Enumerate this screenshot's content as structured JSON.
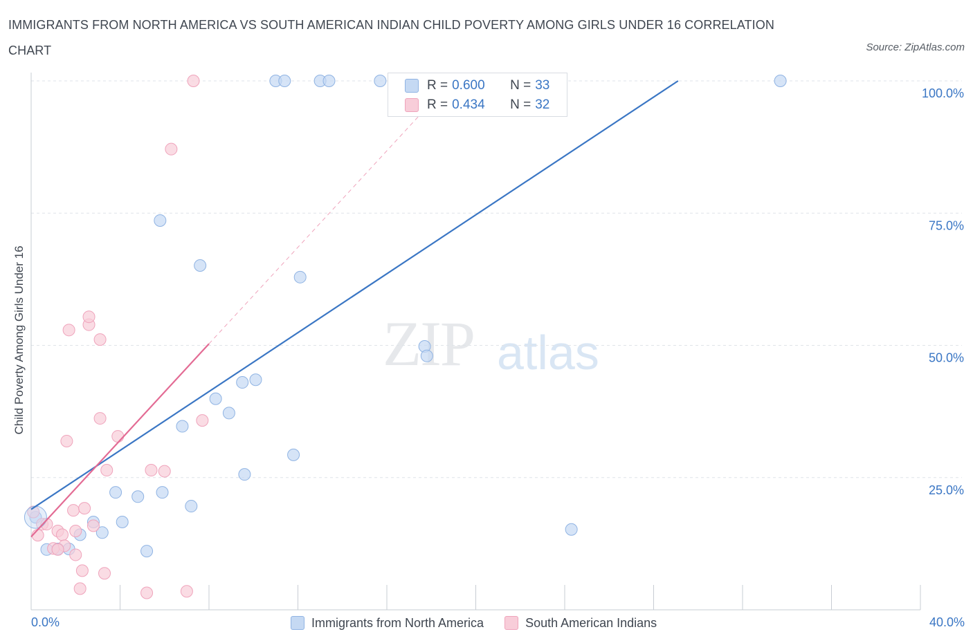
{
  "header": {
    "title": "IMMIGRANTS FROM NORTH AMERICA VS SOUTH AMERICAN INDIAN CHILD POVERTY AMONG GIRLS UNDER 16 CORRELATION CHART",
    "source": "Source: ZipAtlas.com"
  },
  "watermark": {
    "zip": "ZIP",
    "atlas": "atlas"
  },
  "stats": {
    "blue": {
      "r_label": "R = ",
      "r": "0.600",
      "n_label": "N = ",
      "n": "33"
    },
    "pink": {
      "r_label": "R = ",
      "r": "0.434",
      "n_label": "N = ",
      "n": "32"
    }
  },
  "colors": {
    "blue": "#3a76c4",
    "blue_fill": "#c5d9f3",
    "blue_stroke": "#8fb3e3",
    "pink": "#e36b94",
    "pink_fill": "#f8cdd9",
    "pink_stroke": "#efa3bb",
    "grid": "#dfe3e8",
    "tick_label": "#3a76c4"
  },
  "chart_data": {
    "type": "scatter",
    "title": "IMMIGRANTS FROM NORTH AMERICA VS SOUTH AMERICAN INDIAN CHILD POVERTY AMONG GIRLS UNDER 16 CORRELATION CHART",
    "xlabel": "",
    "ylabel": "Child Poverty Among Girls Under 16",
    "xlim": [
      0,
      40
    ],
    "ylim": [
      0,
      100
    ],
    "x_tick_labels": [
      "0.0%",
      "40.0%"
    ],
    "y_ticks": [
      25,
      50,
      75,
      100
    ],
    "y_tick_labels": [
      "25.0%",
      "50.0%",
      "75.0%",
      "100.0%"
    ],
    "grid": true,
    "legend_position": "bottom",
    "series": [
      {
        "name": "Immigrants from North America",
        "color": "#3a76c4",
        "points": [
          [
            0.2,
            17.5
          ],
          [
            0.7,
            11.4
          ],
          [
            1.2,
            11.5
          ],
          [
            1.7,
            11.5
          ],
          [
            2.2,
            14.2
          ],
          [
            2.8,
            16.6
          ],
          [
            3.2,
            14.6
          ],
          [
            3.8,
            22.2
          ],
          [
            4.1,
            16.6
          ],
          [
            4.8,
            21.4
          ],
          [
            5.2,
            11.1
          ],
          [
            5.8,
            73.6
          ],
          [
            5.9,
            22.2
          ],
          [
            6.8,
            34.7
          ],
          [
            7.2,
            19.6
          ],
          [
            7.6,
            65.1
          ],
          [
            8.3,
            39.9
          ],
          [
            8.9,
            37.2
          ],
          [
            9.5,
            43.0
          ],
          [
            10.1,
            43.5
          ],
          [
            9.6,
            25.6
          ],
          [
            11.8,
            29.3
          ],
          [
            12.1,
            62.9
          ],
          [
            17.7,
            49.8
          ],
          [
            17.8,
            48.0
          ],
          [
            24.3,
            15.2
          ],
          [
            11.0,
            100
          ],
          [
            11.4,
            100
          ],
          [
            13.0,
            100
          ],
          [
            13.4,
            100
          ],
          [
            15.7,
            100
          ],
          [
            17.3,
            100
          ],
          [
            33.7,
            100
          ]
        ],
        "trend": {
          "x": [
            0,
            29.1
          ],
          "y": [
            19.0,
            100
          ]
        }
      },
      {
        "name": "South American Indians",
        "color": "#e36b94",
        "points": [
          [
            0.1,
            18.5
          ],
          [
            0.3,
            14.1
          ],
          [
            0.5,
            16.2
          ],
          [
            0.7,
            16.2
          ],
          [
            1.0,
            11.6
          ],
          [
            1.2,
            14.9
          ],
          [
            1.4,
            14.2
          ],
          [
            1.5,
            12.1
          ],
          [
            1.6,
            31.9
          ],
          [
            1.7,
            52.9
          ],
          [
            1.9,
            18.8
          ],
          [
            2.0,
            14.9
          ],
          [
            2.0,
            10.4
          ],
          [
            2.2,
            4.0
          ],
          [
            2.3,
            7.4
          ],
          [
            2.4,
            19.2
          ],
          [
            2.6,
            53.9
          ],
          [
            2.6,
            55.4
          ],
          [
            2.8,
            15.9
          ],
          [
            3.1,
            36.2
          ],
          [
            3.1,
            51.1
          ],
          [
            3.3,
            6.9
          ],
          [
            3.4,
            26.4
          ],
          [
            3.9,
            32.8
          ],
          [
            5.2,
            3.2
          ],
          [
            5.4,
            26.4
          ],
          [
            6.0,
            26.2
          ],
          [
            6.3,
            87.1
          ],
          [
            7.0,
            3.5
          ],
          [
            7.3,
            100
          ],
          [
            7.7,
            35.8
          ],
          [
            1.2,
            11.4
          ]
        ],
        "trend": {
          "x": [
            0,
            8.0
          ],
          "y": [
            13.8,
            50.3
          ]
        },
        "trend_extension": {
          "x": [
            8.0,
            17.8
          ],
          "y": [
            50.3,
            95.0
          ]
        }
      }
    ]
  },
  "legend": {
    "items": [
      {
        "label": "Immigrants from North America"
      },
      {
        "label": "South American Indians"
      }
    ]
  }
}
